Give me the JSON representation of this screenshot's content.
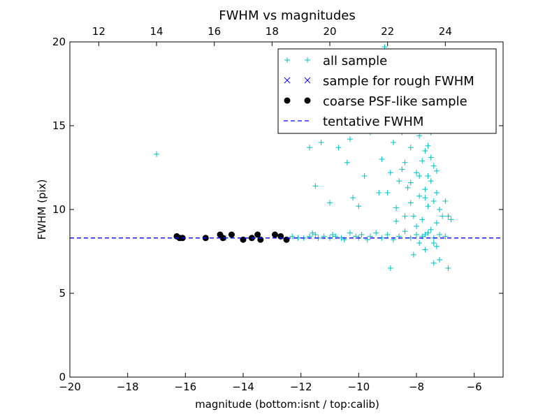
{
  "chart_data": {
    "type": "scatter",
    "title": "FWHM vs magnitudes",
    "xlabel": "magnitude (bottom:isnt / top:calib)",
    "ylabel": "FWHM (pix)",
    "xlim": [
      -20,
      -5
    ],
    "ylim": [
      0,
      20
    ],
    "x_ticks": [
      -20,
      -18,
      -16,
      -14,
      -12,
      -10,
      -8,
      -6
    ],
    "x_tick_labels": [
      "−20",
      "−18",
      "−16",
      "−14",
      "−12",
      "−10",
      "−8",
      "−6"
    ],
    "y_ticks": [
      0,
      5,
      10,
      15,
      20
    ],
    "y_tick_labels": [
      "0",
      "5",
      "10",
      "15",
      "20"
    ],
    "top_axis": {
      "label_range": [
        11,
        26
      ],
      "ticks": [
        12,
        14,
        16,
        18,
        20,
        22,
        24
      ],
      "tick_labels": [
        "12",
        "14",
        "16",
        "18",
        "20",
        "22",
        "24"
      ]
    },
    "legend_position": "top-right",
    "series": [
      {
        "name": "all sample",
        "marker": "plus",
        "color": "#00bfbf",
        "points": [
          [
            -17.0,
            13.3
          ],
          [
            -16.3,
            8.4
          ],
          [
            -16.1,
            8.3
          ],
          [
            -15.3,
            8.3
          ],
          [
            -14.8,
            8.5
          ],
          [
            -14.6,
            8.3
          ],
          [
            -14.4,
            8.5
          ],
          [
            -14.0,
            8.2
          ],
          [
            -13.7,
            8.3
          ],
          [
            -13.5,
            8.5
          ],
          [
            -13.4,
            8.2
          ],
          [
            -12.9,
            8.5
          ],
          [
            -12.7,
            8.4
          ],
          [
            -12.5,
            8.2
          ],
          [
            -12.3,
            8.4
          ],
          [
            -12.1,
            8.3
          ],
          [
            -11.9,
            8.3
          ],
          [
            -11.7,
            8.4
          ],
          [
            -11.6,
            8.6
          ],
          [
            -11.5,
            8.5
          ],
          [
            -11.4,
            8.3
          ],
          [
            -11.2,
            8.4
          ],
          [
            -11.0,
            8.3
          ],
          [
            -10.9,
            8.5
          ],
          [
            -10.8,
            8.4
          ],
          [
            -10.6,
            8.3
          ],
          [
            -10.5,
            8.2
          ],
          [
            -10.3,
            8.6
          ],
          [
            -10.1,
            8.4
          ],
          [
            -10.0,
            8.3
          ],
          [
            -9.9,
            8.5
          ],
          [
            -9.7,
            8.2
          ],
          [
            -9.6,
            8.4
          ],
          [
            -9.4,
            8.6
          ],
          [
            -9.2,
            8.3
          ],
          [
            -9.0,
            8.5
          ],
          [
            -8.8,
            8.2
          ],
          [
            -8.6,
            8.4
          ],
          [
            -8.4,
            8.7
          ],
          [
            -8.2,
            8.3
          ],
          [
            -8.0,
            8.5
          ],
          [
            -7.8,
            8.4
          ],
          [
            -7.6,
            8.6
          ],
          [
            -7.4,
            8.3
          ],
          [
            -7.2,
            8.5
          ],
          [
            -7.0,
            8.4
          ],
          [
            -11.7,
            13.7
          ],
          [
            -11.3,
            14.0
          ],
          [
            -11.5,
            11.4
          ],
          [
            -11.0,
            10.4
          ],
          [
            -10.7,
            13.7
          ],
          [
            -10.4,
            12.8
          ],
          [
            -10.3,
            14.2
          ],
          [
            -10.2,
            10.7
          ],
          [
            -10.0,
            10.2
          ],
          [
            -9.8,
            12.0
          ],
          [
            -9.6,
            14.6
          ],
          [
            -9.5,
            17.1
          ],
          [
            -9.3,
            11.0
          ],
          [
            -9.2,
            13.0
          ],
          [
            -9.1,
            19.7
          ],
          [
            -9.0,
            11.0
          ],
          [
            -8.9,
            12.2
          ],
          [
            -8.9,
            6.5
          ],
          [
            -8.8,
            14.0
          ],
          [
            -8.7,
            9.3
          ],
          [
            -8.7,
            10.1
          ],
          [
            -8.6,
            11.7
          ],
          [
            -8.5,
            14.6
          ],
          [
            -8.5,
            12.4
          ],
          [
            -8.4,
            9.6
          ],
          [
            -8.4,
            12.8
          ],
          [
            -8.3,
            11.3
          ],
          [
            -8.3,
            15.3
          ],
          [
            -8.2,
            10.4
          ],
          [
            -8.2,
            13.7
          ],
          [
            -8.1,
            7.3
          ],
          [
            -8.1,
            9.6
          ],
          [
            -8.0,
            12.2
          ],
          [
            -8.0,
            16.0
          ],
          [
            -8.0,
            9.0
          ],
          [
            -7.9,
            10.8
          ],
          [
            -7.9,
            14.4
          ],
          [
            -7.9,
            8.0
          ],
          [
            -7.8,
            12.9
          ],
          [
            -7.8,
            15.1
          ],
          [
            -7.8,
            9.4
          ],
          [
            -7.7,
            11.2
          ],
          [
            -7.7,
            13.5
          ],
          [
            -7.7,
            7.6
          ],
          [
            -7.6,
            10.2
          ],
          [
            -7.6,
            16.5
          ],
          [
            -7.6,
            12.0
          ],
          [
            -7.5,
            8.8
          ],
          [
            -7.5,
            11.7
          ],
          [
            -7.5,
            14.6
          ],
          [
            -7.4,
            6.8
          ],
          [
            -7.4,
            10.5
          ],
          [
            -7.4,
            12.6
          ],
          [
            -7.3,
            9.2
          ],
          [
            -7.3,
            11.0
          ],
          [
            -7.2,
            7.0
          ],
          [
            -7.2,
            10.0
          ],
          [
            -7.1,
            9.6
          ],
          [
            -7.0,
            10.5
          ],
          [
            -6.9,
            6.5
          ],
          [
            -6.9,
            9.6
          ],
          [
            -6.8,
            9.4
          ],
          [
            -7.3,
            7.8
          ],
          [
            -7.6,
            13.8
          ],
          [
            -7.8,
            16.8
          ],
          [
            -8.0,
            18.0
          ],
          [
            -7.7,
            8.5
          ],
          [
            -7.4,
            8.0
          ],
          [
            -7.9,
            12.0
          ],
          [
            -8.2,
            11.6
          ],
          [
            -7.5,
            13.1
          ],
          [
            -7.3,
            12.3
          ],
          [
            -7.7,
            10.7
          ]
        ]
      },
      {
        "name": "sample for rough FWHM",
        "marker": "x",
        "color": "#0000ff",
        "points": []
      },
      {
        "name": "coarse PSF-like sample",
        "marker": "circle",
        "color": "#000000",
        "points": [
          [
            -16.3,
            8.4
          ],
          [
            -16.2,
            8.3
          ],
          [
            -16.1,
            8.3
          ],
          [
            -15.3,
            8.3
          ],
          [
            -14.8,
            8.5
          ],
          [
            -14.7,
            8.3
          ],
          [
            -14.4,
            8.5
          ],
          [
            -14.0,
            8.2
          ],
          [
            -13.7,
            8.3
          ],
          [
            -13.5,
            8.5
          ],
          [
            -13.4,
            8.2
          ],
          [
            -12.9,
            8.5
          ],
          [
            -12.7,
            8.4
          ],
          [
            -12.5,
            8.2
          ]
        ]
      },
      {
        "name": "tentative FWHM",
        "marker": "dashed-line",
        "color": "#0000ff",
        "value": 8.3
      }
    ]
  }
}
